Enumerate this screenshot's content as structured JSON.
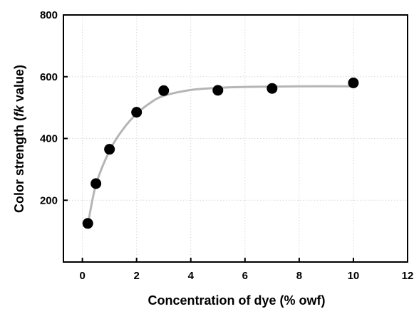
{
  "chart_data": {
    "type": "scatter",
    "title": "",
    "xlabel": "Concentration of dye (% owf)",
    "ylabel_parts": [
      "Color strength (",
      "fk",
      " value)"
    ],
    "xlim": [
      -0.7,
      12
    ],
    "ylim": [
      0,
      800
    ],
    "x_ticks": [
      0,
      2,
      4,
      6,
      8,
      10,
      12
    ],
    "y_ticks": [
      200,
      400,
      600,
      800
    ],
    "grid": true,
    "legend": "none",
    "series": [
      {
        "x": [
          0.2,
          0.5,
          1,
          2,
          3,
          5,
          7,
          10
        ],
        "y": [
          125,
          254,
          365,
          485,
          555,
          556,
          562,
          580
        ]
      }
    ],
    "fit_curve": {
      "x": [
        0.2,
        0.5,
        1,
        1.5,
        2,
        2.5,
        3,
        4,
        5,
        6,
        7,
        8,
        10
      ],
      "y": [
        120,
        250,
        360,
        430,
        480,
        515,
        538,
        557,
        564,
        567,
        568,
        569,
        569
      ]
    },
    "colors": {
      "marker": "#000000",
      "fit": "#b5b5b5",
      "grid": "#d9d9d9",
      "axis": "#000000"
    }
  }
}
